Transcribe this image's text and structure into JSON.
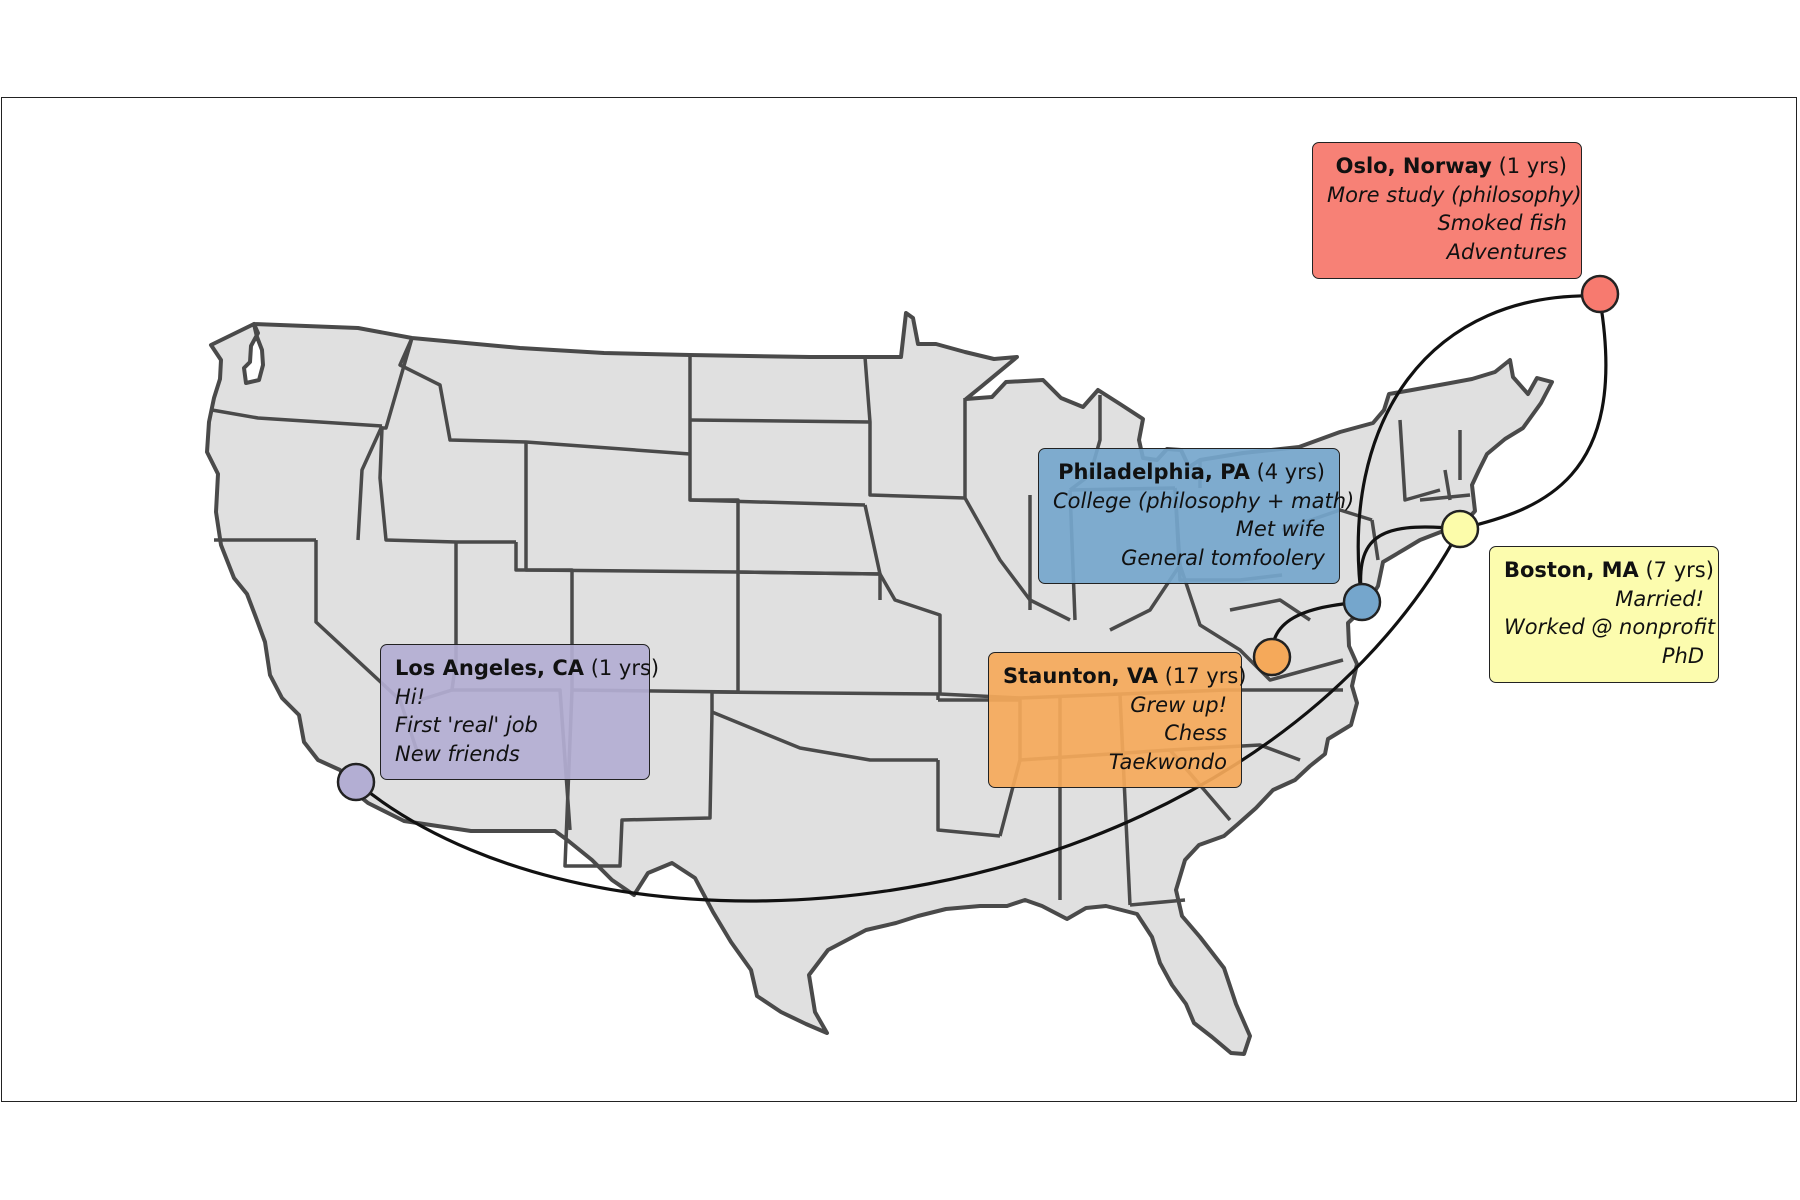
{
  "map": {
    "region": "Contiguous United States",
    "land_color": "#e0e0e0",
    "border_color": "#4a4a4a",
    "route_color": "#111111"
  },
  "places": [
    {
      "city": "Los Angeles, CA",
      "years": "(1 yrs)",
      "color": "#b3aed3",
      "lines": [
        "Hi!",
        "First 'real' job",
        "New friends"
      ]
    },
    {
      "city": "Staunton, VA",
      "years": "(17 yrs)",
      "color": "#f5a95a",
      "lines": [
        "Grew up!",
        "Chess",
        "Taekwondo"
      ]
    },
    {
      "city": "Philadelphia, PA",
      "years": "(4 yrs)",
      "color": "#75a6cc",
      "lines": [
        "College (philosophy + math)",
        "Met wife",
        "General tomfoolery"
      ]
    },
    {
      "city": "Boston, MA",
      "years": "(7 yrs)",
      "color": "#fcfcaa",
      "lines": [
        "Married!",
        "Worked @ nonprofit",
        "PhD"
      ]
    },
    {
      "city": "Oslo, Norway",
      "years": "(1 yrs)",
      "color": "#f77a6f",
      "lines": [
        "More study (philosophy)",
        "Smoked fish",
        "Adventures"
      ]
    }
  ]
}
